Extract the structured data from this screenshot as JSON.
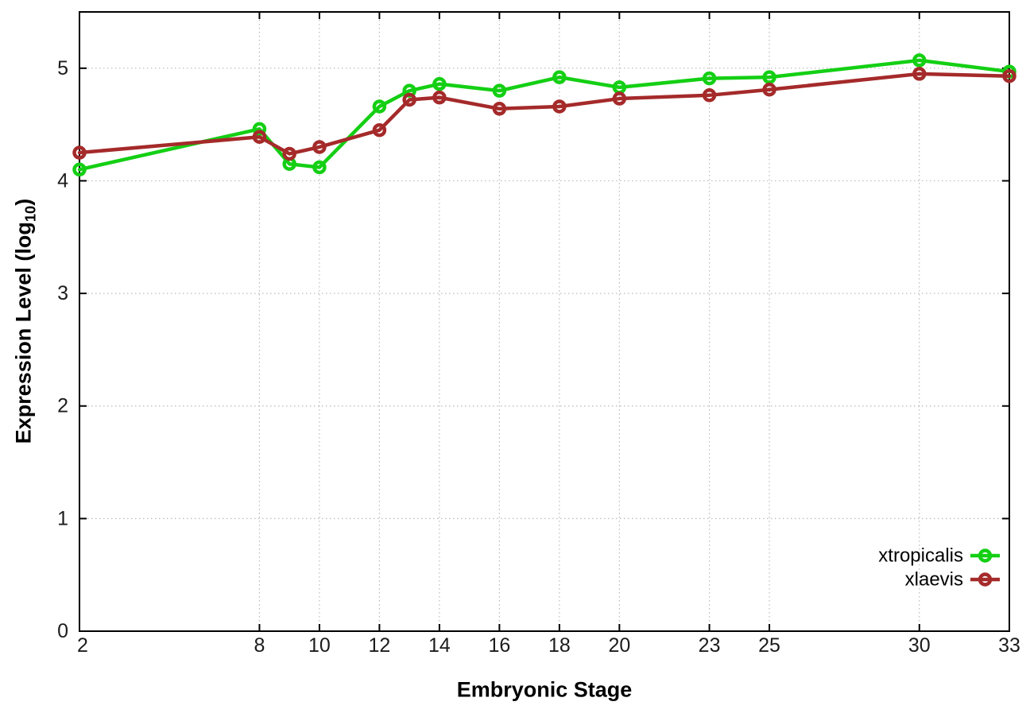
{
  "figure": {
    "xlabel": "Embryonic Stage",
    "ylabel_main": "Expression Level (log",
    "ylabel_sub": "10",
    "ylabel_close": ")"
  },
  "chart_data": {
    "type": "line",
    "title": "",
    "xlabel": "Embryonic Stage",
    "ylabel": "Expression Level (log10)",
    "x": [
      2,
      8,
      9,
      10,
      12,
      13,
      14,
      16,
      18,
      20,
      23,
      25,
      30,
      33
    ],
    "series": [
      {
        "name": "xtropicalis",
        "color": "#14cf14",
        "values": [
          4.1,
          4.46,
          4.15,
          4.12,
          4.66,
          4.8,
          4.86,
          4.8,
          4.92,
          4.83,
          4.91,
          4.92,
          5.07,
          4.97
        ]
      },
      {
        "name": "xlaevis",
        "color": "#a52a2a",
        "values": [
          4.25,
          4.39,
          4.24,
          4.3,
          4.45,
          4.72,
          4.74,
          4.64,
          4.66,
          4.73,
          4.76,
          4.81,
          4.95,
          4.93
        ]
      }
    ],
    "xticks": [
      2,
      8,
      10,
      12,
      14,
      16,
      18,
      20,
      23,
      25,
      30,
      33
    ],
    "yticks": [
      0,
      1,
      2,
      3,
      4,
      5
    ],
    "xlim": [
      2,
      33
    ],
    "ylim": [
      0,
      5.5
    ],
    "grid": true,
    "marker": "open-circle",
    "legend": {
      "position": "inside-right-bottom",
      "entries": [
        "xtropicalis",
        "xlaevis"
      ]
    },
    "colors": {
      "grid": "#b9b9b9",
      "axis": "#000000",
      "tick_text": "#1c1c1c"
    }
  }
}
